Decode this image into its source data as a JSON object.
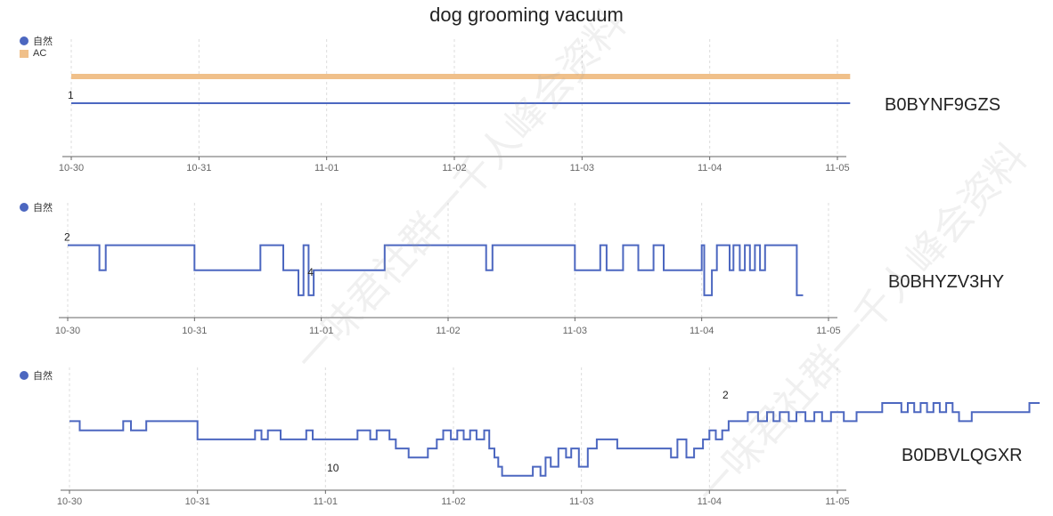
{
  "title": "dog grooming vacuum",
  "colors": {
    "natural": "#4c67c0",
    "ac": "#f0c08a",
    "grid": "#dcdcdc",
    "axis": "#666666"
  },
  "chart_data": [
    {
      "type": "line",
      "asin": "B0BYNF9GZS",
      "legend": [
        "自然",
        "AC"
      ],
      "x_ticks": [
        "10-30",
        "10-31",
        "11-01",
        "11-02",
        "11-03",
        "11-04",
        "11-05"
      ],
      "y_inverted": true,
      "ylim": [
        0,
        2
      ],
      "point_labels": [
        {
          "x": 0.0,
          "y": 1,
          "text": "1"
        }
      ],
      "series": [
        {
          "name": "自然",
          "points": [
            [
              0.0,
              1
            ],
            [
              6.1,
              1
            ]
          ]
        },
        {
          "name": "AC",
          "points": [
            [
              0.0,
              0.5
            ],
            [
              6.1,
              0.5
            ]
          ]
        }
      ]
    },
    {
      "type": "line",
      "asin": "B0BHYZV3HY",
      "legend": [
        "自然"
      ],
      "x_ticks": [
        "10-30",
        "10-31",
        "11-01",
        "11-02",
        "11-03",
        "11-04",
        "11-05"
      ],
      "y_inverted": true,
      "ylim": [
        1.8,
        5
      ],
      "point_labels": [
        {
          "x": 0.0,
          "y": 2,
          "text": "2"
        },
        {
          "x": 1.92,
          "y": 3.4,
          "text": "4"
        }
      ],
      "series": [
        {
          "name": "自然",
          "points": [
            [
              0.0,
              2
            ],
            [
              0.25,
              2
            ],
            [
              0.25,
              3
            ],
            [
              0.3,
              3
            ],
            [
              0.3,
              2
            ],
            [
              1.0,
              2
            ],
            [
              1.0,
              3
            ],
            [
              1.52,
              3
            ],
            [
              1.52,
              2
            ],
            [
              1.7,
              2
            ],
            [
              1.7,
              3
            ],
            [
              1.82,
              3
            ],
            [
              1.82,
              4
            ],
            [
              1.86,
              4
            ],
            [
              1.86,
              2
            ],
            [
              1.9,
              2
            ],
            [
              1.9,
              4
            ],
            [
              1.94,
              4
            ],
            [
              1.94,
              3
            ],
            [
              2.5,
              3
            ],
            [
              2.5,
              2
            ],
            [
              3.3,
              2
            ],
            [
              3.3,
              3
            ],
            [
              3.35,
              3
            ],
            [
              3.35,
              2
            ],
            [
              4.0,
              2
            ],
            [
              4.0,
              3
            ],
            [
              4.2,
              3
            ],
            [
              4.2,
              2
            ],
            [
              4.25,
              2
            ],
            [
              4.25,
              3
            ],
            [
              4.38,
              3
            ],
            [
              4.38,
              2
            ],
            [
              4.5,
              2
            ],
            [
              4.5,
              3
            ],
            [
              4.62,
              3
            ],
            [
              4.62,
              2
            ],
            [
              4.7,
              2
            ],
            [
              4.7,
              3
            ],
            [
              5.0,
              3
            ],
            [
              5.0,
              2
            ],
            [
              5.02,
              2
            ],
            [
              5.02,
              4
            ],
            [
              5.08,
              4
            ],
            [
              5.08,
              3
            ],
            [
              5.12,
              3
            ],
            [
              5.12,
              2
            ],
            [
              5.22,
              2
            ],
            [
              5.22,
              3
            ],
            [
              5.25,
              3
            ],
            [
              5.25,
              2
            ],
            [
              5.3,
              2
            ],
            [
              5.3,
              3
            ],
            [
              5.34,
              3
            ],
            [
              5.34,
              2
            ],
            [
              5.38,
              2
            ],
            [
              5.38,
              3
            ],
            [
              5.42,
              3
            ],
            [
              5.42,
              2
            ],
            [
              5.46,
              2
            ],
            [
              5.46,
              3
            ],
            [
              5.5,
              3
            ],
            [
              5.5,
              2
            ],
            [
              5.75,
              2
            ],
            [
              5.75,
              4
            ],
            [
              5.8,
              4
            ]
          ]
        }
      ]
    },
    {
      "type": "line",
      "asin": "B0DBVLQGXR",
      "legend": [
        "自然"
      ],
      "x_ticks": [
        "10-30",
        "10-31",
        "11-01",
        "11-02",
        "11-03",
        "11-04",
        "11-05"
      ],
      "y_inverted": true,
      "ylim": [
        2,
        11
      ],
      "point_labels": [
        {
          "x": 5.13,
          "y": 2,
          "text": "2"
        },
        {
          "x": 2.04,
          "y": 10,
          "text": "10"
        }
      ],
      "series": [
        {
          "name": "自然",
          "points": [
            [
              0.0,
              4
            ],
            [
              0.08,
              4
            ],
            [
              0.08,
              5
            ],
            [
              0.42,
              5
            ],
            [
              0.42,
              4
            ],
            [
              0.48,
              4
            ],
            [
              0.48,
              5
            ],
            [
              0.6,
              5
            ],
            [
              0.6,
              4
            ],
            [
              1.0,
              4
            ],
            [
              1.0,
              6
            ],
            [
              1.45,
              6
            ],
            [
              1.45,
              5
            ],
            [
              1.5,
              5
            ],
            [
              1.5,
              6
            ],
            [
              1.55,
              6
            ],
            [
              1.55,
              5
            ],
            [
              1.65,
              5
            ],
            [
              1.65,
              6
            ],
            [
              1.85,
              6
            ],
            [
              1.85,
              5
            ],
            [
              1.9,
              5
            ],
            [
              1.9,
              6
            ],
            [
              2.25,
              6
            ],
            [
              2.25,
              5
            ],
            [
              2.35,
              5
            ],
            [
              2.35,
              6
            ],
            [
              2.4,
              6
            ],
            [
              2.4,
              5
            ],
            [
              2.5,
              5
            ],
            [
              2.5,
              6
            ],
            [
              2.55,
              6
            ],
            [
              2.55,
              7
            ],
            [
              2.65,
              7
            ],
            [
              2.65,
              8
            ],
            [
              2.8,
              8
            ],
            [
              2.8,
              7
            ],
            [
              2.87,
              7
            ],
            [
              2.87,
              6
            ],
            [
              2.92,
              6
            ],
            [
              2.92,
              5
            ],
            [
              2.98,
              5
            ],
            [
              2.98,
              6
            ],
            [
              3.03,
              6
            ],
            [
              3.03,
              5
            ],
            [
              3.08,
              5
            ],
            [
              3.08,
              6
            ],
            [
              3.13,
              6
            ],
            [
              3.13,
              5
            ],
            [
              3.18,
              5
            ],
            [
              3.18,
              6
            ],
            [
              3.24,
              6
            ],
            [
              3.24,
              5
            ],
            [
              3.28,
              5
            ],
            [
              3.28,
              7
            ],
            [
              3.32,
              7
            ],
            [
              3.32,
              8
            ],
            [
              3.35,
              8
            ],
            [
              3.35,
              9
            ],
            [
              3.38,
              9
            ],
            [
              3.38,
              10
            ],
            [
              3.62,
              10
            ],
            [
              3.62,
              9
            ],
            [
              3.68,
              9
            ],
            [
              3.68,
              10
            ],
            [
              3.72,
              10
            ],
            [
              3.72,
              8
            ],
            [
              3.76,
              8
            ],
            [
              3.76,
              9
            ],
            [
              3.82,
              9
            ],
            [
              3.82,
              7
            ],
            [
              3.88,
              7
            ],
            [
              3.88,
              8
            ],
            [
              3.92,
              8
            ],
            [
              3.92,
              7
            ],
            [
              3.98,
              7
            ],
            [
              3.98,
              9
            ],
            [
              4.05,
              9
            ],
            [
              4.05,
              7
            ],
            [
              4.12,
              7
            ],
            [
              4.12,
              6
            ],
            [
              4.28,
              6
            ],
            [
              4.28,
              7
            ],
            [
              4.7,
              7
            ],
            [
              4.7,
              8
            ],
            [
              4.75,
              8
            ],
            [
              4.75,
              6
            ],
            [
              4.82,
              6
            ],
            [
              4.82,
              8
            ],
            [
              4.88,
              8
            ],
            [
              4.88,
              7
            ],
            [
              4.95,
              7
            ],
            [
              4.95,
              6
            ],
            [
              5.0,
              6
            ],
            [
              5.0,
              5
            ],
            [
              5.05,
              5
            ],
            [
              5.05,
              6
            ],
            [
              5.1,
              6
            ],
            [
              5.1,
              5
            ],
            [
              5.15,
              5
            ],
            [
              5.15,
              4
            ],
            [
              5.3,
              4
            ],
            [
              5.3,
              3
            ],
            [
              5.38,
              3
            ],
            [
              5.38,
              4
            ],
            [
              5.45,
              4
            ],
            [
              5.45,
              3
            ],
            [
              5.5,
              3
            ],
            [
              5.5,
              4
            ],
            [
              5.55,
              4
            ],
            [
              5.55,
              3
            ],
            [
              5.62,
              3
            ],
            [
              5.62,
              4
            ],
            [
              5.68,
              4
            ],
            [
              5.68,
              3
            ],
            [
              5.75,
              3
            ],
            [
              5.75,
              4
            ],
            [
              5.82,
              4
            ],
            [
              5.82,
              3
            ],
            [
              5.88,
              3
            ],
            [
              5.88,
              4
            ],
            [
              5.95,
              4
            ],
            [
              5.95,
              3
            ],
            [
              6.05,
              3
            ],
            [
              6.05,
              4
            ],
            [
              6.15,
              4
            ],
            [
              6.15,
              3
            ],
            [
              6.35,
              3
            ],
            [
              6.35,
              2
            ],
            [
              6.5,
              2
            ],
            [
              6.5,
              3
            ],
            [
              6.55,
              3
            ],
            [
              6.55,
              2
            ],
            [
              6.6,
              2
            ],
            [
              6.6,
              3
            ],
            [
              6.65,
              3
            ],
            [
              6.65,
              2
            ],
            [
              6.7,
              2
            ],
            [
              6.7,
              3
            ],
            [
              6.75,
              3
            ],
            [
              6.75,
              2
            ],
            [
              6.8,
              2
            ],
            [
              6.8,
              3
            ],
            [
              6.85,
              3
            ],
            [
              6.85,
              2
            ],
            [
              6.9,
              2
            ],
            [
              6.9,
              3
            ],
            [
              6.95,
              3
            ],
            [
              6.95,
              4
            ],
            [
              7.05,
              4
            ],
            [
              7.05,
              3
            ],
            [
              7.5,
              3
            ],
            [
              7.5,
              2
            ],
            [
              7.58,
              2
            ]
          ]
        }
      ]
    }
  ],
  "watermark": "一味君社群一千人峰会资料"
}
